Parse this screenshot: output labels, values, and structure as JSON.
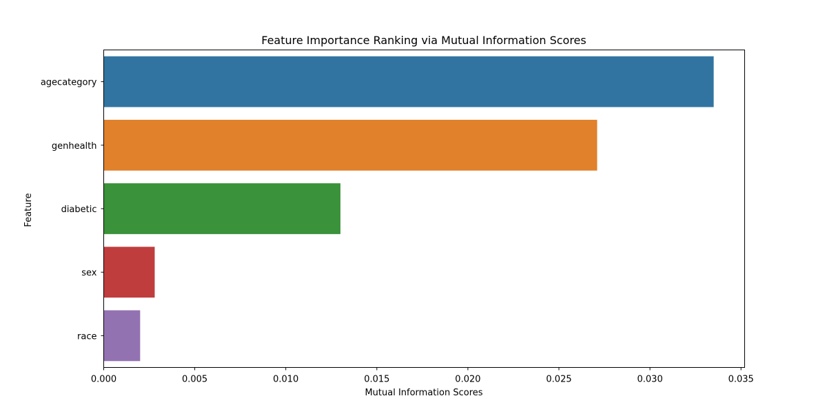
{
  "chart_data": {
    "type": "bar",
    "orientation": "horizontal",
    "title": "Feature Importance Ranking via Mutual Information Scores",
    "xlabel": "Mutual Information Scores",
    "ylabel": "Feature",
    "categories": [
      "agecategory",
      "genhealth",
      "diabetic",
      "sex",
      "race"
    ],
    "values": [
      0.0335,
      0.0271,
      0.013,
      0.0028,
      0.002
    ],
    "colors": [
      "#3274a1",
      "#e1812c",
      "#3a923a",
      "#c03d3e",
      "#9372b2"
    ],
    "xlim": [
      0,
      0.0352
    ],
    "xticks": [
      0.0,
      0.005,
      0.01,
      0.015,
      0.02,
      0.025,
      0.03,
      0.035
    ],
    "xtick_labels": [
      "0.000",
      "0.005",
      "0.010",
      "0.015",
      "0.020",
      "0.025",
      "0.030",
      "0.035"
    ],
    "grid": false,
    "legend": false
  }
}
